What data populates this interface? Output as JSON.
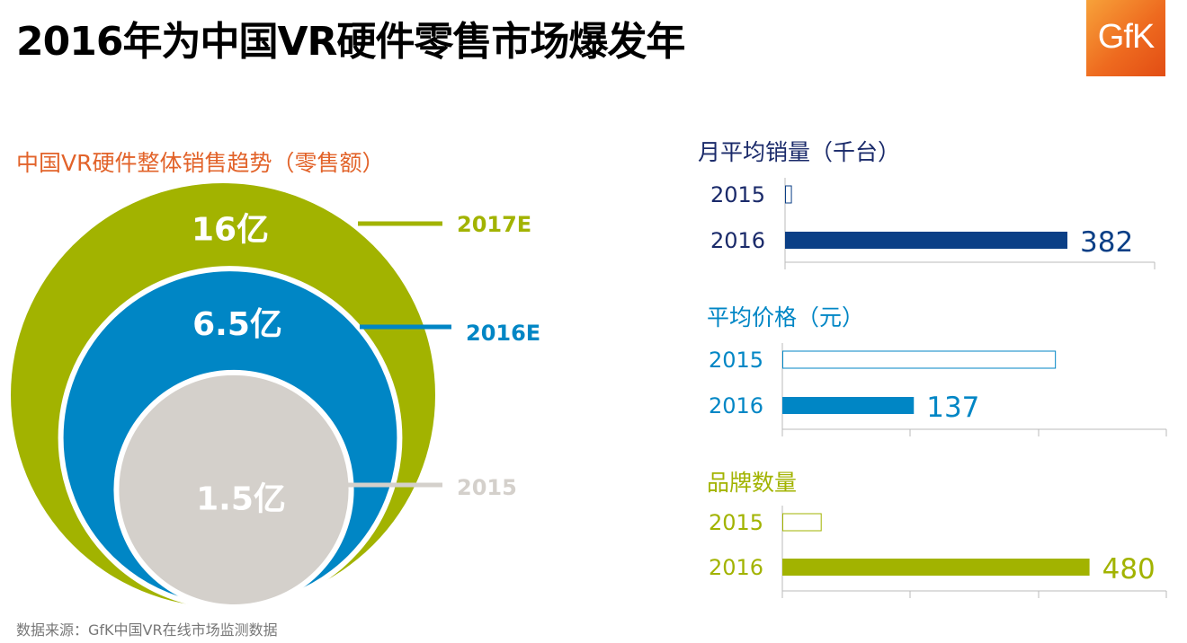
{
  "header": {
    "title": "2016年为中国VR硬件零售市场爆发年",
    "logo_text": "GfK"
  },
  "footer": {
    "source": "数据来源：GfK中国VR在线市场监测数据"
  },
  "colors": {
    "olive": "#a2b300",
    "blue": "#0086c5",
    "navy": "#0b3f86",
    "gray": "#d4d0cb",
    "orange": "#e2632a"
  },
  "chart_data": [
    {
      "type": "bubble",
      "title": "中国VR硬件整体销售趋势（零售额）",
      "series": [
        {
          "name": "2017E",
          "value_label": "16亿",
          "value": 16,
          "color": "#a2b300"
        },
        {
          "name": "2016E",
          "value_label": "6.5亿",
          "value": 6.5,
          "color": "#0086c5"
        },
        {
          "name": "2015",
          "value_label": "1.5亿",
          "value": 1.5,
          "color": "#d4d0cb"
        }
      ]
    },
    {
      "type": "bar",
      "orientation": "horizontal",
      "title": "月平均销量（千台）",
      "categories": [
        "2015",
        "2016"
      ],
      "values": [
        8,
        382
      ],
      "value_labels": [
        "",
        "382"
      ],
      "xlim": [
        0,
        500
      ],
      "color": "#0b3f86"
    },
    {
      "type": "bar",
      "orientation": "horizontal",
      "title": "平均价格（元）",
      "categories": [
        "2015",
        "2016"
      ],
      "values": [
        284,
        137
      ],
      "value_labels": [
        "",
        "137"
      ],
      "xlim": [
        0,
        400
      ],
      "color": "#0086c5"
    },
    {
      "type": "bar",
      "orientation": "horizontal",
      "title": "品牌数量",
      "categories": [
        "2015",
        "2016"
      ],
      "values": [
        60,
        480
      ],
      "value_labels": [
        "",
        "480"
      ],
      "xlim": [
        0,
        600
      ],
      "color": "#a2b300"
    }
  ]
}
